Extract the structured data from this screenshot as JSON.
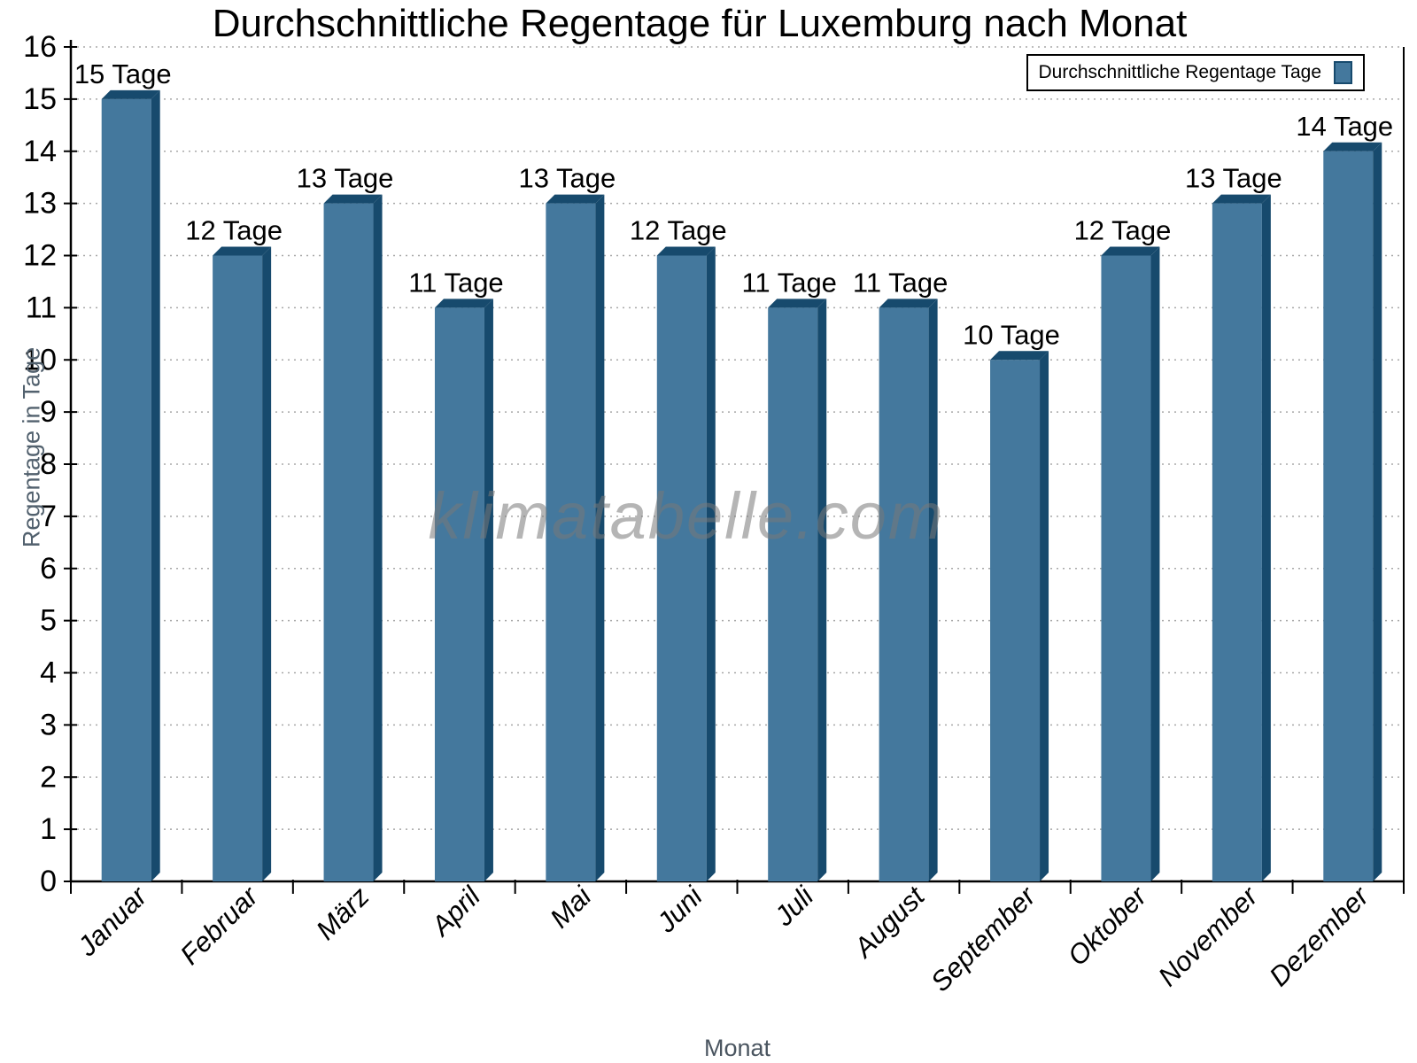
{
  "chart_data": {
    "type": "bar",
    "title": "Durchschnittliche Regentage für Luxemburg nach Monat",
    "xlabel": "Monat",
    "ylabel": "Regentage in Tage",
    "watermark": "klimatabelle.com",
    "legend": {
      "label": "Durchschnittliche Regentage Tage",
      "position": "top-right"
    },
    "categories": [
      "Januar",
      "Februar",
      "März",
      "April",
      "Mai",
      "Juni",
      "Juli",
      "August",
      "September",
      "Oktober",
      "November",
      "Dezember"
    ],
    "values": [
      15,
      12,
      13,
      11,
      13,
      12,
      11,
      11,
      10,
      12,
      13,
      14
    ],
    "bar_labels": [
      "15 Tage",
      "12 Tage",
      "13 Tage",
      "11 Tage",
      "13 Tage",
      "12 Tage",
      "11 Tage",
      "11 Tage",
      "10 Tage",
      "12 Tage",
      "13 Tage",
      "14 Tage"
    ],
    "unit": "Tage",
    "ylim": [
      0,
      16
    ],
    "ytick_step": 1,
    "yticks": [
      0,
      1,
      2,
      3,
      4,
      5,
      6,
      7,
      8,
      9,
      10,
      11,
      12,
      13,
      14,
      15,
      16
    ],
    "grid": "horizontal-dotted",
    "colors": {
      "bar_face": "#44789D",
      "bar_edge": "#174A6D",
      "grid_line": "#A8A8A8",
      "axis": "#000000",
      "tick_label": "#000000",
      "bar_label": "#000000",
      "axis_title": "#4A5560",
      "watermark": "#787878",
      "background": "#FFFFFF"
    }
  }
}
